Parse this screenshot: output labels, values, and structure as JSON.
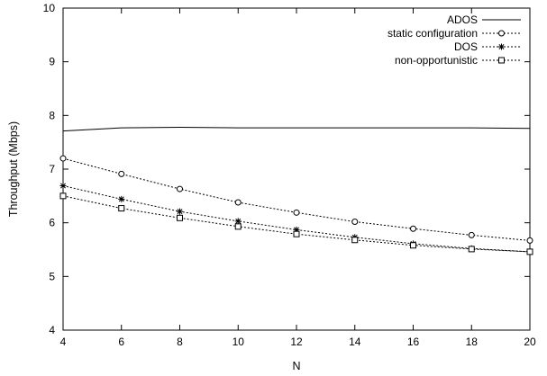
{
  "chart_data": {
    "type": "line",
    "title": "",
    "xlabel": "N",
    "ylabel": "Throughput (Mbps)",
    "xlim": [
      4,
      20
    ],
    "ylim": [
      4,
      10
    ],
    "x_ticks": [
      4,
      6,
      8,
      10,
      12,
      14,
      16,
      18,
      20
    ],
    "y_ticks": [
      4,
      5,
      6,
      7,
      8,
      9,
      10
    ],
    "grid": false,
    "legend_position": "top-right",
    "series": [
      {
        "name": "ADOS",
        "marker": "none",
        "dash": "solid",
        "x": [
          4,
          6,
          8,
          10,
          12,
          14,
          16,
          18,
          20
        ],
        "values": [
          7.71,
          7.77,
          7.78,
          7.77,
          7.77,
          7.77,
          7.77,
          7.77,
          7.76
        ]
      },
      {
        "name": "static configuration",
        "marker": "circle",
        "dash": "dotted",
        "x": [
          4,
          6,
          8,
          10,
          12,
          14,
          16,
          18,
          20
        ],
        "values": [
          7.2,
          6.91,
          6.63,
          6.38,
          6.19,
          6.02,
          5.89,
          5.77,
          5.67
        ]
      },
      {
        "name": "DOS",
        "marker": "star",
        "dash": "dotted",
        "x": [
          4,
          6,
          8,
          10,
          12,
          14,
          16,
          18,
          20
        ],
        "values": [
          6.69,
          6.44,
          6.21,
          6.03,
          5.87,
          5.73,
          5.61,
          5.52,
          5.46
        ]
      },
      {
        "name": "non-opportunistic",
        "marker": "square",
        "dash": "dotted",
        "x": [
          4,
          6,
          8,
          10,
          12,
          14,
          16,
          18,
          20
        ],
        "values": [
          6.5,
          6.27,
          6.09,
          5.93,
          5.79,
          5.68,
          5.58,
          5.51,
          5.46
        ]
      }
    ]
  }
}
